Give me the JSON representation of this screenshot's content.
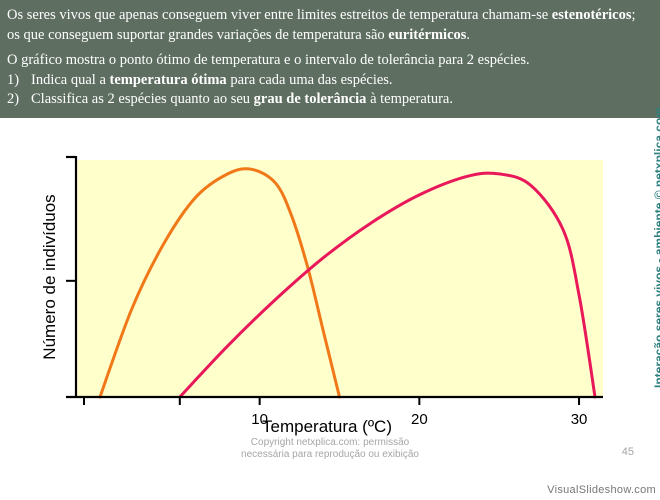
{
  "header": {
    "p1": [
      {
        "text": "Os seres vivos que apenas conseguem viver entre limites estreitos de temperatura chamam-se ",
        "bold": false
      },
      {
        "text": "estenotéricos",
        "bold": true
      },
      {
        "text": "; os que conseguem suportar grandes variações de temperatura são ",
        "bold": false
      },
      {
        "text": "euritérmicos",
        "bold": true
      },
      {
        "text": ".",
        "bold": false
      }
    ],
    "p2": "O gráfico mostra o ponto ótimo de temperatura e o intervalo de tolerância para 2 espécies.",
    "items": [
      {
        "num": "1)",
        "parts": [
          {
            "text": "Indica qual a ",
            "bold": false
          },
          {
            "text": "temperatura ótima",
            "bold": true
          },
          {
            "text": " para cada uma das espécies.",
            "bold": false
          }
        ]
      },
      {
        "num": "2)",
        "parts": [
          {
            "text": "Classifica as 2 espécies quanto ao seu ",
            "bold": false
          },
          {
            "text": "grau de tolerância",
            "bold": true
          },
          {
            "text": " à temperatura.",
            "bold": false
          }
        ]
      }
    ]
  },
  "chart_data": {
    "type": "line",
    "xlabel": "Temperatura (ºC)",
    "ylabel": "Número de indivíduos",
    "xlim": [
      -1.5,
      31.5
    ],
    "ylim": [
      0,
      1.02
    ],
    "x_ticks": [
      10,
      20,
      30
    ],
    "y_ticks": [
      0.5
    ],
    "plot_background": "#ffffcc",
    "series": [
      {
        "color": "#f07818",
        "x": [
          0,
          2,
          4,
          6,
          8,
          9.5,
          11,
          12,
          13,
          14,
          15
        ],
        "y": [
          0,
          0.38,
          0.66,
          0.86,
          0.96,
          0.98,
          0.92,
          0.78,
          0.56,
          0.28,
          0
        ]
      },
      {
        "color": "#e8185a",
        "x": [
          5,
          8,
          11,
          14,
          17,
          20,
          23,
          25,
          27,
          29,
          30,
          31
        ],
        "y": [
          0,
          0.22,
          0.42,
          0.6,
          0.75,
          0.87,
          0.95,
          0.96,
          0.91,
          0.72,
          0.44,
          0
        ]
      }
    ]
  },
  "side_credit": "Interação seres vivos - ambiente © netxplica.com",
  "copyright": {
    "line1": "Copyright netxplica.com: permissão",
    "line2": "necessária para reprodução ou exibição"
  },
  "slide_number": "45",
  "watermark": "VisualSlideshow.com"
}
